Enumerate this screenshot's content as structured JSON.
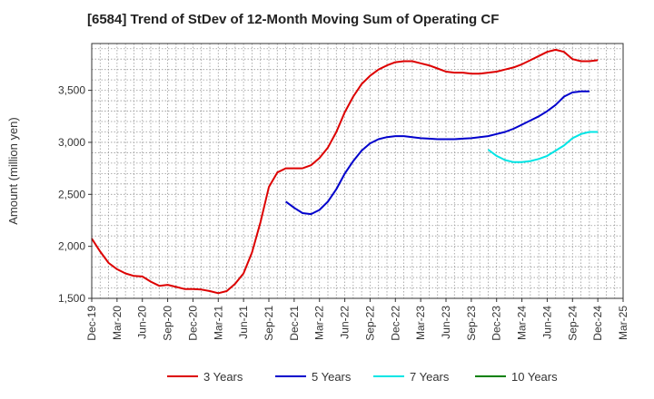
{
  "chart_data": {
    "type": "line",
    "title": "[6584]  Trend of StDev of 12-Month Moving Sum of Operating CF",
    "ylabel": "Amount (million yen)",
    "xlabel": "",
    "ylim": [
      1500,
      3950
    ],
    "yticks": [
      1500,
      2000,
      2500,
      3000,
      3500
    ],
    "ytick_labels": [
      "1,500",
      "2,000",
      "2,500",
      "3,000",
      "3,500"
    ],
    "x_start": "Dec-19",
    "x_tick_labels": [
      "Dec-19",
      "Mar-20",
      "Jun-20",
      "Sep-20",
      "Dec-20",
      "Mar-21",
      "Jun-21",
      "Sep-21",
      "Dec-21",
      "Mar-22",
      "Jun-22",
      "Sep-22",
      "Dec-22",
      "Mar-23",
      "Jun-23",
      "Sep-23",
      "Dec-23",
      "Mar-24",
      "Jun-24",
      "Sep-24",
      "Dec-24",
      "Mar-25"
    ],
    "grid": true,
    "legend_position": "bottom",
    "series": [
      {
        "name": "3 Years",
        "color": "#dd0000",
        "start": "Dec-19",
        "values": [
          2075,
          1950,
          1840,
          1780,
          1740,
          1715,
          1710,
          1660,
          1620,
          1630,
          1610,
          1590,
          1590,
          1585,
          1570,
          1550,
          1570,
          1640,
          1740,
          1940,
          2230,
          2570,
          2710,
          2750,
          2750,
          2750,
          2780,
          2850,
          2950,
          3100,
          3290,
          3440,
          3560,
          3640,
          3700,
          3740,
          3770,
          3780,
          3780,
          3760,
          3740,
          3710,
          3680,
          3670,
          3670,
          3660,
          3660,
          3670,
          3680,
          3700,
          3720,
          3750,
          3790,
          3830,
          3870,
          3890,
          3870,
          3800,
          3780,
          3780,
          3790
        ]
      },
      {
        "name": "5 Years",
        "color": "#0000cc",
        "start": "Nov-21",
        "values": [
          2430,
          2370,
          2320,
          2310,
          2350,
          2430,
          2550,
          2700,
          2820,
          2920,
          2990,
          3030,
          3050,
          3060,
          3060,
          3050,
          3040,
          3035,
          3030,
          3030,
          3030,
          3035,
          3040,
          3050,
          3060,
          3080,
          3100,
          3130,
          3170,
          3210,
          3250,
          3300,
          3360,
          3440,
          3480,
          3490,
          3490
        ]
      },
      {
        "name": "7 Years",
        "color": "#00e5e5",
        "start": "Nov-23",
        "values": [
          2930,
          2870,
          2830,
          2810,
          2810,
          2820,
          2840,
          2870,
          2920,
          2970,
          3040,
          3080,
          3100,
          3100
        ]
      },
      {
        "name": "10 Years",
        "color": "#008000",
        "start": "Dec-24",
        "values": []
      }
    ]
  }
}
